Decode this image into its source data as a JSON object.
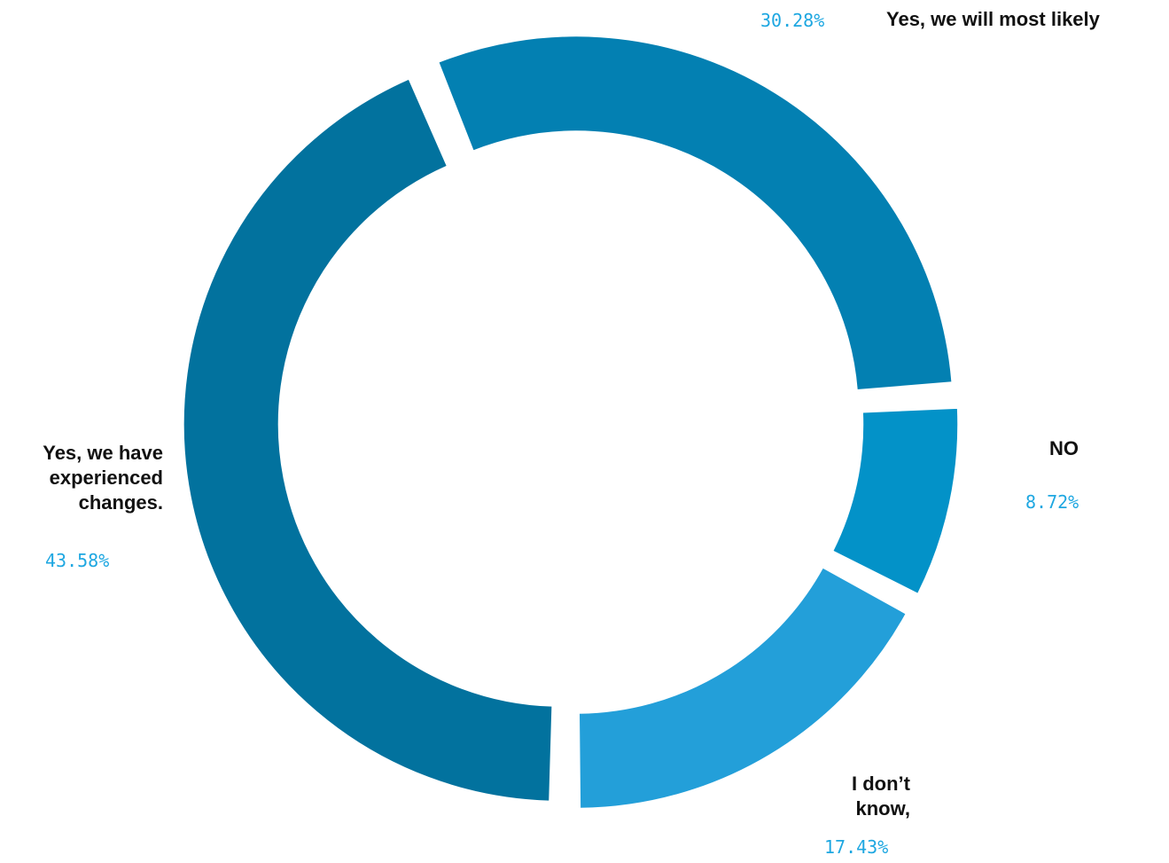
{
  "chart_data": {
    "type": "pie",
    "title": "",
    "donut": true,
    "colors": {
      "label_text": "#111111",
      "percent_text": "#1ea7e1",
      "slice_stroke": "#ffffff"
    },
    "slices": [
      {
        "label": "Yes, we will most likely",
        "label_lines": [
          "Yes, we will most likely"
        ],
        "percent_text": "30.28%",
        "value": 30.28,
        "color": "#0380b2"
      },
      {
        "label": "NO",
        "label_lines": [
          "NO"
        ],
        "percent_text": "8.72%",
        "value": 8.72,
        "color": "#0392c8"
      },
      {
        "label": "I don’t know,",
        "label_lines": [
          "I don’t",
          "know,"
        ],
        "percent_text": "17.43%",
        "value": 17.43,
        "color": "#239fd9"
      },
      {
        "label": "Yes, we have experienced changes.",
        "label_lines": [
          "Yes, we have",
          "experienced",
          "changes."
        ],
        "percent_text": "43.58%",
        "value": 43.58,
        "color": "#02729e"
      }
    ]
  }
}
